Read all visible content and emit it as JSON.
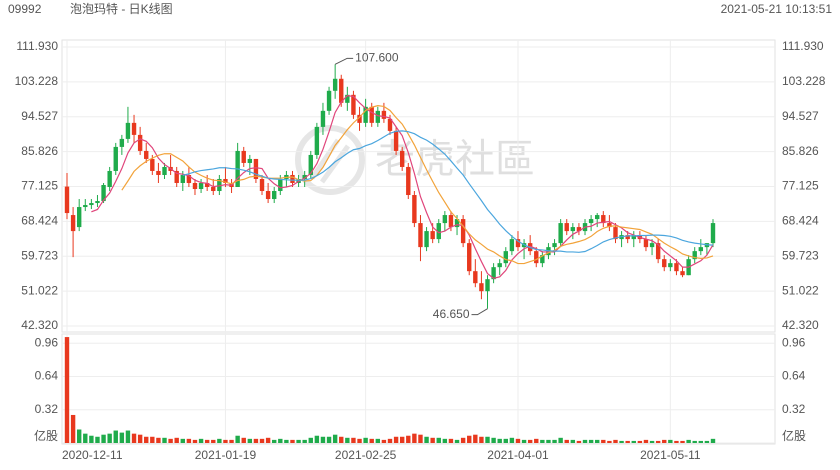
{
  "chart_data": {
    "type": "candlestick",
    "code": "09992",
    "title": "泡泡玛特 - 日K线图",
    "timestamp": "2021-05-21 10:13:51",
    "watermark": "老虎社區",
    "up_color": "#1fab4b",
    "down_color": "#e8381e",
    "grid": true,
    "ylim": [
      42.32,
      111.93
    ],
    "yticks": [
      {
        "value": 42.32,
        "label": "42.320"
      },
      51.022,
      59.723,
      68.424,
      77.125,
      85.826,
      94.527,
      103.228,
      {
        "value": 111.93,
        "label": "111.930"
      }
    ],
    "volume_ylim": [
      0,
      1.04
    ],
    "volume_yticks": [
      {
        "value": 0,
        "label": "亿股"
      },
      0.32,
      0.64,
      0.96
    ],
    "x": [
      "2020-12-11",
      null,
      null,
      null,
      null,
      null,
      null,
      null,
      null,
      null,
      null,
      null,
      null,
      null,
      null,
      null,
      null,
      null,
      null,
      null,
      null,
      null,
      null,
      null,
      null,
      null,
      "2021-01-19",
      null,
      null,
      null,
      null,
      null,
      null,
      null,
      null,
      null,
      null,
      null,
      null,
      null,
      null,
      null,
      null,
      null,
      null,
      null,
      null,
      null,
      null,
      "2021-02-25",
      null,
      null,
      null,
      null,
      null,
      null,
      null,
      null,
      null,
      null,
      null,
      null,
      null,
      null,
      null,
      null,
      null,
      null,
      null,
      null,
      null,
      null,
      null,
      null,
      "2021-04-01",
      null,
      null,
      null,
      null,
      null,
      null,
      null,
      null,
      null,
      null,
      null,
      null,
      null,
      null,
      null,
      null,
      null,
      null,
      null,
      null,
      null,
      null,
      null,
      null,
      "2021-05-11",
      null,
      null,
      null,
      null,
      null,
      null,
      null
    ],
    "ohlc": [
      [
        77.1,
        80.5,
        69,
        70.5
      ],
      [
        70,
        72,
        59.5,
        66
      ],
      [
        67,
        74,
        66,
        72
      ],
      [
        72,
        74,
        71,
        72.5
      ],
      [
        72.5,
        74,
        71.5,
        73
      ],
      [
        73,
        75,
        72,
        73.5
      ],
      [
        73.5,
        78,
        73,
        77.5
      ],
      [
        77,
        82,
        76,
        81
      ],
      [
        81,
        88,
        80,
        87
      ],
      [
        87,
        90,
        85,
        89
      ],
      [
        89,
        97,
        88,
        93
      ],
      [
        93,
        95,
        88,
        90
      ],
      [
        90,
        92,
        85,
        86
      ],
      [
        86,
        88,
        83,
        84
      ],
      [
        84,
        85,
        80,
        81
      ],
      [
        81,
        83,
        78,
        80
      ],
      [
        80,
        83,
        79,
        82
      ],
      [
        82,
        85,
        80,
        81
      ],
      [
        81,
        82,
        77,
        78
      ],
      [
        78,
        81,
        76,
        80
      ],
      [
        80,
        82,
        77,
        78
      ],
      [
        78,
        79,
        75,
        76.5
      ],
      [
        76.5,
        79,
        75.5,
        78
      ],
      [
        78,
        80,
        76,
        77
      ],
      [
        77,
        79,
        75,
        76
      ],
      [
        76,
        80,
        75,
        79
      ],
      [
        79,
        82,
        77,
        78
      ],
      [
        78,
        79,
        75.5,
        77
      ],
      [
        77,
        88,
        77,
        86
      ],
      [
        86,
        87,
        82,
        83
      ],
      [
        83,
        85,
        80,
        84
      ],
      [
        84,
        84,
        78,
        79
      ],
      [
        79,
        80,
        75,
        76
      ],
      [
        76,
        78,
        73,
        74
      ],
      [
        74,
        77,
        73,
        76
      ],
      [
        76,
        80,
        75,
        79
      ],
      [
        79,
        81,
        77,
        80
      ],
      [
        80,
        81,
        77,
        78
      ],
      [
        78,
        80,
        77,
        79
      ],
      [
        79,
        81,
        77,
        80
      ],
      [
        80,
        86,
        79,
        85
      ],
      [
        85,
        93,
        84,
        92
      ],
      [
        92,
        98,
        90,
        96
      ],
      [
        96,
        102,
        95,
        101
      ],
      [
        101,
        107.6,
        99,
        104
      ],
      [
        104,
        105,
        97,
        98
      ],
      [
        98,
        102,
        96,
        100
      ],
      [
        100,
        101,
        94,
        95
      ],
      [
        95,
        97,
        91,
        93
      ],
      [
        93,
        99,
        92,
        97
      ],
      [
        97,
        98,
        92,
        93
      ],
      [
        93,
        97,
        92,
        96
      ],
      [
        96,
        98,
        93,
        94
      ],
      [
        94,
        95,
        90,
        91
      ],
      [
        91,
        92,
        85,
        86
      ],
      [
        86,
        87,
        81,
        82
      ],
      [
        82,
        83,
        74,
        75
      ],
      [
        75,
        76,
        67,
        68
      ],
      [
        68,
        70,
        58.5,
        62
      ],
      [
        62,
        67,
        61,
        66
      ],
      [
        66,
        68,
        63,
        64
      ],
      [
        64,
        69,
        63,
        68
      ],
      [
        68,
        71,
        66,
        70
      ],
      [
        70,
        71,
        66,
        67
      ],
      [
        67,
        70,
        65,
        69
      ],
      [
        69,
        70,
        62,
        63
      ],
      [
        63,
        64,
        55,
        56
      ],
      [
        56,
        59,
        52,
        53
      ],
      [
        53,
        56,
        49,
        51
      ],
      [
        51,
        55,
        46.65,
        54
      ],
      [
        54,
        58,
        53,
        57
      ],
      [
        57,
        59,
        55,
        58
      ],
      [
        58,
        62,
        57,
        61
      ],
      [
        61,
        65,
        60,
        64
      ],
      [
        64,
        66,
        61,
        62
      ],
      [
        62,
        64,
        59,
        63
      ],
      [
        63,
        65,
        60,
        61
      ],
      [
        61,
        62,
        57,
        58
      ],
      [
        58,
        61,
        57,
        60
      ],
      [
        60,
        63,
        59,
        62
      ],
      [
        62,
        64,
        60,
        63
      ],
      [
        63,
        69,
        62,
        68
      ],
      [
        68,
        69,
        65,
        66
      ],
      [
        66,
        68,
        64,
        67
      ],
      [
        67,
        68,
        65,
        66
      ],
      [
        66,
        69,
        65,
        68
      ],
      [
        68,
        70,
        66,
        69
      ],
      [
        69,
        70.5,
        67,
        70
      ],
      [
        70,
        71,
        67,
        68
      ],
      [
        68,
        70,
        66,
        67
      ],
      [
        67,
        68,
        63,
        64
      ],
      [
        64,
        66,
        62,
        65
      ],
      [
        65,
        66,
        63,
        64
      ],
      [
        64,
        66,
        62,
        65
      ],
      [
        65,
        66,
        63,
        64
      ],
      [
        64,
        65,
        61,
        62
      ],
      [
        62,
        64,
        60,
        63
      ],
      [
        63,
        64,
        58,
        59
      ],
      [
        59,
        60,
        56,
        57
      ],
      [
        57,
        59,
        56,
        58
      ],
      [
        58,
        59,
        55,
        56
      ],
      [
        56,
        57,
        54.5,
        55
      ],
      [
        55,
        60,
        55,
        59
      ],
      [
        59,
        62,
        58,
        61
      ],
      [
        61,
        64,
        60,
        62
      ],
      [
        62,
        63,
        60,
        63
      ],
      [
        63,
        69,
        62,
        68
      ]
    ],
    "volume": [
      1.02,
      0.27,
      0.13,
      0.09,
      0.07,
      0.06,
      0.08,
      0.09,
      0.12,
      0.1,
      0.12,
      0.09,
      0.08,
      0.06,
      0.06,
      0.05,
      0.05,
      0.04,
      0.05,
      0.04,
      0.04,
      0.03,
      0.04,
      0.03,
      0.03,
      0.04,
      0.03,
      0.03,
      0.07,
      0.05,
      0.04,
      0.04,
      0.04,
      0.05,
      0.03,
      0.04,
      0.03,
      0.03,
      0.03,
      0.03,
      0.05,
      0.07,
      0.06,
      0.06,
      0.08,
      0.06,
      0.05,
      0.05,
      0.04,
      0.05,
      0.04,
      0.04,
      0.03,
      0.04,
      0.06,
      0.06,
      0.07,
      0.09,
      0.08,
      0.06,
      0.05,
      0.05,
      0.04,
      0.04,
      0.03,
      0.05,
      0.07,
      0.08,
      0.06,
      0.06,
      0.05,
      0.04,
      0.04,
      0.05,
      0.04,
      0.03,
      0.03,
      0.04,
      0.03,
      0.03,
      0.03,
      0.05,
      0.03,
      0.03,
      0.02,
      0.03,
      0.03,
      0.03,
      0.03,
      0.02,
      0.03,
      0.02,
      0.02,
      0.02,
      0.02,
      0.03,
      0.02,
      0.02,
      0.03,
      0.03,
      0.02,
      0.02,
      0.03,
      0.02,
      0.02,
      0.02,
      0.04
    ],
    "ma": [
      {
        "color": "#e0457b",
        "values": [
          null,
          null,
          null,
          null,
          70.8,
          71.4,
          73.7,
          75.5,
          78.4,
          81.6,
          85.5,
          88,
          89,
          88.4,
          86.8,
          84.2,
          82.6,
          81.6,
          80.4,
          80.2,
          79.8,
          78.7,
          78.1,
          77.9,
          77.1,
          77.3,
          77.6,
          77.4,
          79.2,
          80.6,
          81.6,
          81.8,
          81.6,
          79.2,
          77.8,
          76.8,
          77,
          77.4,
          78.4,
          79.2,
          80.4,
          82.8,
          86.4,
          90.8,
          95.6,
          98.2,
          99.8,
          99.6,
          98,
          96.6,
          95.6,
          94.8,
          94.6,
          94.2,
          92,
          89.8,
          85.6,
          80.4,
          74.6,
          70.6,
          67,
          65.6,
          66,
          67,
          67.6,
          67.4,
          65,
          61.6,
          58.4,
          55.4,
          54.2,
          54.6,
          56.2,
          58.8,
          60.4,
          61.6,
          62.2,
          61.6,
          60.8,
          60.8,
          60.8,
          62.2,
          63.8,
          65.2,
          66,
          67,
          67.2,
          68,
          68.2,
          68.4,
          67.6,
          66.8,
          65.6,
          65,
          64.4,
          64,
          63.6,
          62.6,
          61,
          59.8,
          58.6,
          57,
          57,
          57.8,
          58.6,
          60,
          62.6
        ]
      },
      {
        "color": "#f2a33a",
        "values": [
          null,
          null,
          null,
          null,
          null,
          null,
          null,
          null,
          null,
          76.2,
          78.5,
          80.9,
          82.3,
          83.4,
          84.2,
          84.9,
          85.3,
          85.3,
          84.4,
          83.5,
          82,
          80.7,
          79.9,
          79.2,
          78.7,
          78.6,
          78.2,
          77.8,
          78.6,
          78.9,
          79.5,
          79.7,
          79.5,
          79.2,
          79.2,
          79.2,
          79.4,
          79.5,
          78.8,
          78.5,
          78.6,
          79.9,
          81.9,
          84.6,
          87.4,
          89.3,
          91.3,
          93,
          94.4,
          96.1,
          96.9,
          97.3,
          97.1,
          96.1,
          94.3,
          92.7,
          90.2,
          87.5,
          84.4,
          81.3,
          78.4,
          75.6,
          73.2,
          70.8,
          69.1,
          67.2,
          65.3,
          63.8,
          62.7,
          61.5,
          60.8,
          59.8,
          58.9,
          58.6,
          57.9,
          57.9,
          58.4,
          58.9,
          59.8,
          60.6,
          61.2,
          62.2,
          62.7,
          63,
          63.4,
          63.9,
          64.7,
          65.9,
          66.7,
          67.2,
          67.3,
          67,
          66.8,
          66.6,
          66.4,
          65.8,
          65.2,
          64.1,
          63,
          62.1,
          61.3,
          60.3,
          59.8,
          59.4,
          59.2,
          59.3,
          59.8
        ]
      },
      {
        "color": "#4ba6de",
        "values": [
          null,
          null,
          null,
          null,
          null,
          null,
          null,
          null,
          null,
          null,
          null,
          null,
          null,
          null,
          null,
          null,
          null,
          null,
          null,
          79.9,
          80.3,
          80.8,
          81.1,
          81.3,
          81.5,
          81.8,
          81.8,
          81.6,
          81.5,
          81.2,
          80.8,
          80.2,
          79.7,
          79.2,
          79,
          78.9,
          78.8,
          78.7,
          78.7,
          78.7,
          79.1,
          79.8,
          80.7,
          81.9,
          83.3,
          84.3,
          85.4,
          86.3,
          86.6,
          87.3,
          87.8,
          88.6,
          89.5,
          90.4,
          90.9,
          91,
          90.8,
          90.3,
          89.4,
          88.7,
          87.7,
          86.5,
          85.2,
          83.5,
          81.7,
          80,
          77.8,
          75.7,
          73.6,
          71.4,
          69.6,
          67.7,
          66.1,
          64.7,
          63.5,
          62.6,
          61.9,
          61.4,
          61.3,
          61.1,
          61,
          61,
          60.8,
          60.8,
          60.7,
          60.9,
          61.6,
          62.4,
          63.3,
          63.9,
          64.3,
          64.6,
          64.8,
          64.8,
          64.9,
          64.9,
          65,
          65,
          64.9,
          64.7,
          64.3,
          63.7,
          63.3,
          63,
          62.8,
          62.6,
          62.5
        ]
      }
    ],
    "annotations": [
      {
        "value": 107.6,
        "label": "107.600"
      },
      {
        "value": 46.65,
        "label": "46.650"
      }
    ]
  }
}
